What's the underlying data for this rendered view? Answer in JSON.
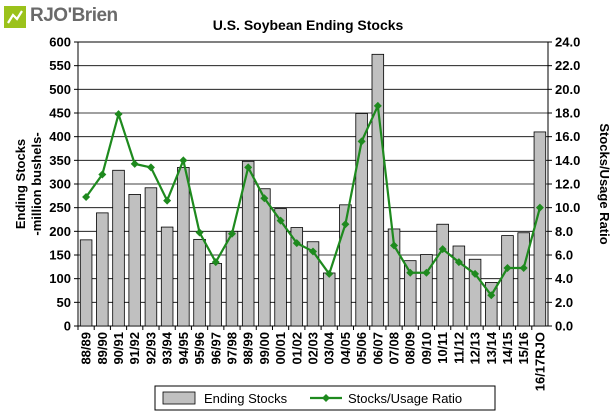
{
  "logo": {
    "text": "RJO'Brien"
  },
  "chart_data": {
    "type": "bar",
    "title": "U.S. Soybean Ending Stocks",
    "ylabel_lines": [
      "Ending Stocks",
      "-million bushels-"
    ],
    "ylabel_right": "Stocks/Usage Ratio",
    "categories": [
      "88/89",
      "89/90",
      "90/91",
      "91/92",
      "92/93",
      "93/94",
      "94/95",
      "95/96",
      "96/97",
      "97/98",
      "98/99",
      "99/00",
      "00/01",
      "01/02",
      "02/03",
      "03/04",
      "04/05",
      "05/06",
      "06/07",
      "07/08",
      "08/09",
      "09/10",
      "10/11",
      "11/12",
      "12/13",
      "13/14",
      "14/15",
      "15/16",
      "16/17RJO"
    ],
    "ylim": [
      0,
      600
    ],
    "yticks": [
      "0",
      "50",
      "100",
      "150",
      "200",
      "250",
      "300",
      "350",
      "400",
      "450",
      "500",
      "550",
      "600"
    ],
    "y2lim": [
      0,
      24
    ],
    "y2ticks": [
      "0.0",
      "2.0",
      "4.0",
      "6.0",
      "8.0",
      "10.0",
      "12.0",
      "14.0",
      "16.0",
      "18.0",
      "20.0",
      "22.0",
      "24.0"
    ],
    "series": [
      {
        "name": "Ending Stocks",
        "kind": "bar",
        "color": "#c0c0c0",
        "values": [
          182,
          239,
          329,
          278,
          292,
          209,
          335,
          183,
          132,
          200,
          348,
          290,
          248,
          208,
          178,
          112,
          256,
          449,
          574,
          205,
          138,
          151,
          215,
          169,
          141,
          92,
          191,
          197,
          410
        ]
      },
      {
        "name": "Stocks/Usage Ratio",
        "kind": "line",
        "color": "#1e8a1e",
        "axis": "right",
        "values": [
          10.9,
          12.8,
          17.9,
          13.7,
          13.4,
          10.6,
          14.0,
          7.9,
          5.4,
          7.8,
          13.4,
          10.8,
          8.9,
          7.0,
          6.3,
          4.4,
          8.6,
          15.6,
          18.6,
          6.8,
          4.5,
          4.5,
          6.5,
          5.4,
          4.4,
          2.6,
          4.9,
          4.9,
          10.0
        ]
      }
    ],
    "grid": true,
    "legend_position": "bottom"
  }
}
